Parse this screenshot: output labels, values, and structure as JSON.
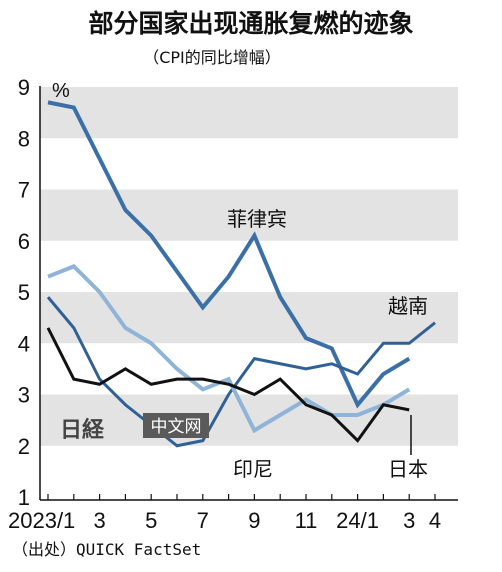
{
  "chart_data": {
    "type": "line",
    "title": "部分国家出现通胀复燃的迹象",
    "subtitle": "（CPI的同比增幅）",
    "unit": "%",
    "source": "（出处）QUICK FactSet",
    "ylim": [
      1,
      9
    ],
    "yticks": [
      "1",
      "2",
      "3",
      "4",
      "5",
      "6",
      "7",
      "8",
      "9"
    ],
    "x_tick_labels": [
      {
        "month": 0,
        "label": "2023/1"
      },
      {
        "month": 2,
        "label": "3"
      },
      {
        "month": 4,
        "label": "5"
      },
      {
        "month": 6,
        "label": "7"
      },
      {
        "month": 8,
        "label": "9"
      },
      {
        "month": 10,
        "label": "11"
      },
      {
        "month": 12,
        "label": "24/1"
      },
      {
        "month": 14,
        "label": "3"
      },
      {
        "month": 15,
        "label": "4"
      }
    ],
    "grid": "alternating horizontal bands",
    "series": [
      {
        "name": "菲律宾",
        "color": "#3a6fa8",
        "width": 4,
        "x": [
          0,
          1,
          2,
          3,
          4,
          5,
          6,
          7,
          8,
          9,
          10,
          11,
          12,
          13,
          14,
          15
        ],
        "values": [
          8.7,
          8.6,
          7.6,
          6.6,
          6.1,
          5.4,
          4.7,
          5.3,
          6.1,
          4.9,
          4.1,
          3.9,
          2.8,
          3.4,
          3.7,
          null
        ]
      },
      {
        "name": "越南",
        "color": "#2f6096",
        "width": 3,
        "x": [
          0,
          1,
          2,
          3,
          4,
          5,
          6,
          7,
          8,
          9,
          10,
          11,
          12,
          13,
          14,
          15
        ],
        "values": [
          4.9,
          4.3,
          3.3,
          2.8,
          2.4,
          2.0,
          2.1,
          3.0,
          3.7,
          3.6,
          3.5,
          3.6,
          3.4,
          4.0,
          4.0,
          4.4
        ]
      },
      {
        "name": "印尼",
        "color": "#8fb4d8",
        "width": 4,
        "x": [
          0,
          1,
          2,
          3,
          4,
          5,
          6,
          7,
          8,
          9,
          10,
          11,
          12,
          13,
          14,
          15
        ],
        "values": [
          5.3,
          5.5,
          5.0,
          4.3,
          4.0,
          3.5,
          3.1,
          3.3,
          2.3,
          2.6,
          2.9,
          2.6,
          2.6,
          2.8,
          3.1,
          null
        ]
      },
      {
        "name": "日本",
        "color": "#111111",
        "width": 3,
        "x": [
          0,
          1,
          2,
          3,
          4,
          5,
          6,
          7,
          8,
          9,
          10,
          11,
          12,
          13,
          14,
          15
        ],
        "values": [
          4.3,
          3.3,
          3.2,
          3.5,
          3.2,
          3.3,
          3.3,
          3.2,
          3.0,
          3.3,
          2.8,
          2.6,
          2.1,
          2.8,
          2.7,
          null
        ]
      }
    ],
    "labels": [
      "菲律宾",
      "越南",
      "印尼",
      "日本"
    ]
  },
  "watermark": {
    "logo": "日経",
    "text": "中文网"
  }
}
